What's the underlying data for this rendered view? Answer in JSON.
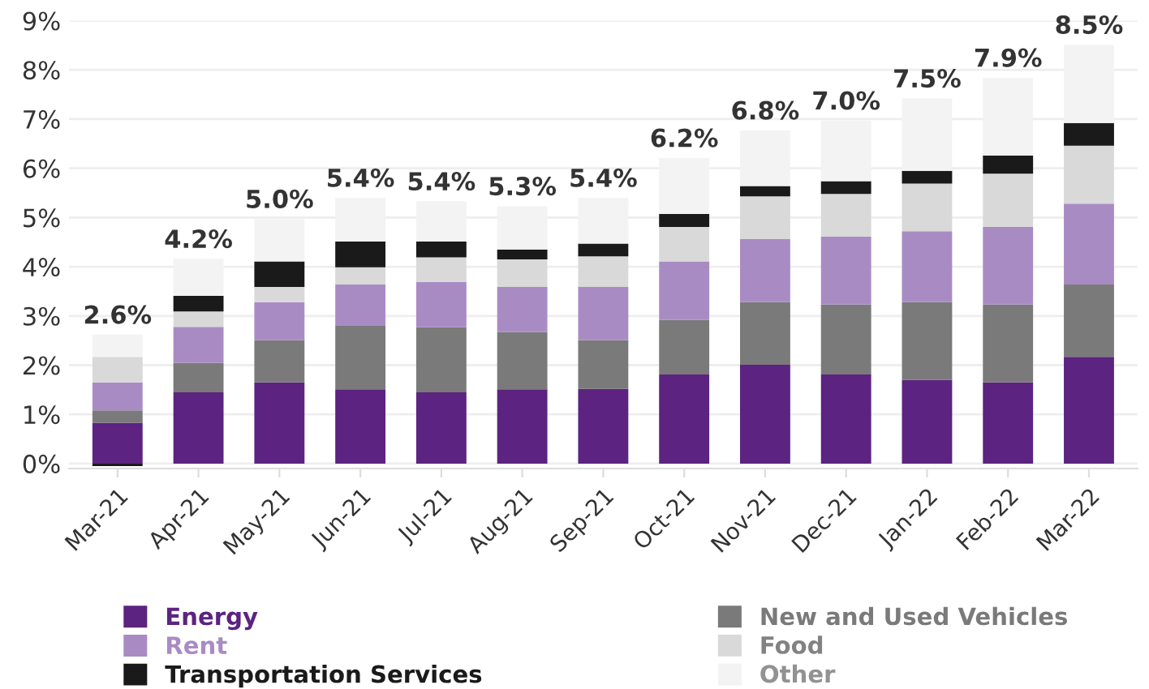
{
  "chart_data": {
    "type": "bar",
    "stacked": true,
    "categories": [
      "Mar-21",
      "Apr-21",
      "May-21",
      "Jun-21",
      "Jul-21",
      "Aug-21",
      "Sep-21",
      "Oct-21",
      "Nov-21",
      "Dec-21",
      "Jan-22",
      "Feb-22",
      "Mar-22"
    ],
    "series": [
      {
        "name": "Energy",
        "color": "#5c2380",
        "values": [
          0.83,
          1.45,
          1.65,
          1.51,
          1.45,
          1.51,
          1.52,
          1.81,
          2.01,
          1.81,
          1.7,
          1.65,
          2.17
        ]
      },
      {
        "name": "New and Used Vehicles",
        "color": "#7a7a7a",
        "values": [
          0.25,
          0.6,
          0.86,
          1.3,
          1.32,
          1.16,
          0.99,
          1.11,
          1.27,
          1.42,
          1.58,
          1.58,
          1.47
        ]
      },
      {
        "name": "Rent",
        "color": "#a98bc4",
        "values": [
          0.57,
          0.73,
          0.77,
          0.83,
          0.92,
          0.92,
          1.08,
          1.19,
          1.28,
          1.38,
          1.44,
          1.58,
          1.64
        ]
      },
      {
        "name": "Food",
        "color": "#d9d9d9",
        "values": [
          0.52,
          0.31,
          0.31,
          0.35,
          0.5,
          0.56,
          0.62,
          0.7,
          0.87,
          0.87,
          0.97,
          1.08,
          1.18
        ]
      },
      {
        "name": "Transportation Services",
        "color": "#1a1a1a",
        "values": [
          -0.05,
          0.32,
          0.52,
          0.52,
          0.32,
          0.2,
          0.26,
          0.26,
          0.21,
          0.26,
          0.26,
          0.37,
          0.46
        ]
      },
      {
        "name": "Other",
        "color": "#f3f3f3",
        "values": [
          0.45,
          0.75,
          0.86,
          0.89,
          0.82,
          0.88,
          0.93,
          1.14,
          1.13,
          1.23,
          1.47,
          1.58,
          1.59
        ]
      }
    ],
    "totals": [
      "2.6%",
      "4.2%",
      "5.0%",
      "5.4%",
      "5.4%",
      "5.3%",
      "5.4%",
      "6.2%",
      "6.8%",
      "7.0%",
      "7.5%",
      "7.9%",
      "8.5%"
    ],
    "ylim": [
      -0.1,
      9
    ],
    "yticks": [
      {
        "value": 0,
        "label": "0%"
      },
      {
        "value": 1,
        "label": "1%"
      },
      {
        "value": 2,
        "label": "2%"
      },
      {
        "value": 3,
        "label": "3%"
      },
      {
        "value": 4,
        "label": "4%"
      },
      {
        "value": 5,
        "label": "5%"
      },
      {
        "value": 6,
        "label": "6%"
      },
      {
        "value": 7,
        "label": "7%"
      },
      {
        "value": 8,
        "label": "8%"
      },
      {
        "value": 9,
        "label": "9%"
      }
    ],
    "grid": "y",
    "legend": "bottom"
  }
}
